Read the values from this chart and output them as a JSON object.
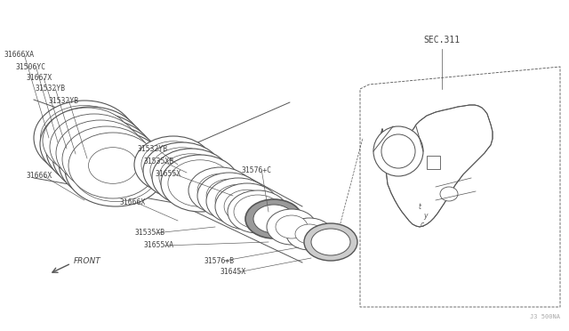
{
  "bg_color": "#ffffff",
  "line_color": "#555555",
  "text_color": "#444444",
  "fig_width": 6.4,
  "fig_height": 3.72,
  "dpi": 100,
  "watermark": "J3 500NA",
  "sec_label": "SEC.311",
  "front_label": "FRONT"
}
